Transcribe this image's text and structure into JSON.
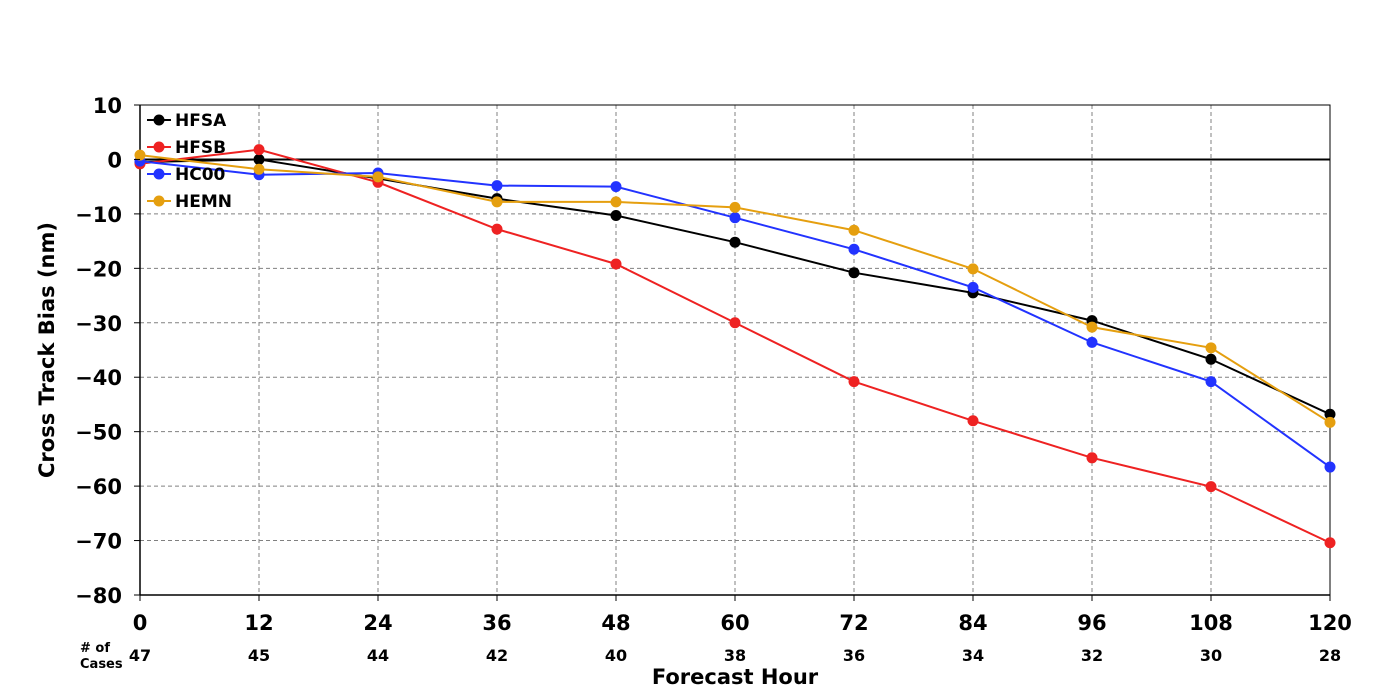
{
  "chart_data": {
    "type": "line",
    "xlabel": "Forecast Hour",
    "ylabel": "Cross Track Bias (nm)",
    "x": [
      0,
      12,
      24,
      36,
      48,
      60,
      72,
      84,
      96,
      108,
      120
    ],
    "xlim": [
      0,
      120
    ],
    "ylim": [
      -80,
      10
    ],
    "yticks": [
      10,
      0,
      -10,
      -20,
      -30,
      -40,
      -50,
      -60,
      -70,
      -80
    ],
    "xtick_labels": [
      "0",
      "12",
      "24",
      "36",
      "48",
      "60",
      "72",
      "84",
      "96",
      "108",
      "120"
    ],
    "ytick_labels": [
      "10",
      "0",
      "−10",
      "−20",
      "−30",
      "−40",
      "−50",
      "−60",
      "−70",
      "−80"
    ],
    "grid": true,
    "zero_line": true,
    "legend_position": "top-left",
    "cases_label_line1": "# of",
    "cases_label_line2": "Cases",
    "cases": [
      "47",
      "45",
      "44",
      "42",
      "40",
      "38",
      "36",
      "34",
      "32",
      "30",
      "28"
    ],
    "series": [
      {
        "name": "HFSA",
        "color": "#000000",
        "values": [
          -0.5,
          0.0,
          -3.5,
          -7.2,
          -10.3,
          -15.2,
          -20.8,
          -24.5,
          -29.6,
          -36.7,
          -46.8
        ]
      },
      {
        "name": "HFSB",
        "color": "#ee2222",
        "values": [
          -0.8,
          1.8,
          -4.2,
          -12.8,
          -19.2,
          -30.0,
          -40.8,
          -48.0,
          -54.8,
          -60.1,
          -70.4
        ]
      },
      {
        "name": "HC00",
        "color": "#2233ff",
        "values": [
          -0.3,
          -2.8,
          -2.5,
          -4.8,
          -5.0,
          -10.7,
          -16.5,
          -23.5,
          -33.6,
          -40.8,
          -56.5
        ]
      },
      {
        "name": "HEMN",
        "color": "#e59f0f",
        "values": [
          0.8,
          -1.8,
          -3.2,
          -7.8,
          -7.8,
          -8.8,
          -13.0,
          -20.1,
          -30.8,
          -34.6,
          -48.3
        ]
      }
    ]
  }
}
